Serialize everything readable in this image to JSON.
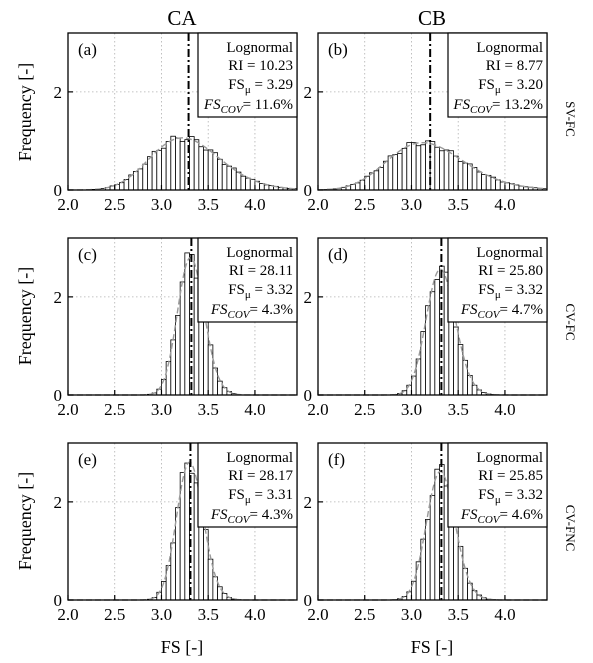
{
  "columns": [
    "CA",
    "CB"
  ],
  "rows": [
    "SV-FC",
    "CV-FC",
    "CV-FNC"
  ],
  "ylabel": "Frequency [-]",
  "xlabel": "FS [-]",
  "colors": {
    "bars": "#ffffff",
    "bar_edge": "#000000",
    "fit_curve": "#9a9a9a",
    "grid": "#b0b0b0"
  },
  "chart_data": [
    {
      "type": "bar",
      "panel": "(a)",
      "column": "CA",
      "row": "SV-FC",
      "dist": "Lognormal",
      "ri_label": "RI = 10.23",
      "mu_label": "FSμ = 3.29",
      "cov_label": "FSCOV= 11.6%",
      "RI": 10.23,
      "mean": 3.29,
      "cov": 11.6,
      "xlim": [
        2.0,
        4.45
      ],
      "ylim": [
        0,
        3.2
      ],
      "xticks": [
        2.0,
        2.5,
        3.0,
        3.5,
        4.0
      ],
      "yticks": [
        0,
        2
      ],
      "xlabel": "",
      "ylabel": "Frequency [-]"
    },
    {
      "type": "bar",
      "panel": "(b)",
      "column": "CB",
      "row": "SV-FC",
      "dist": "Lognormal",
      "ri_label": "RI = 8.77",
      "mu_label": "FSμ = 3.20",
      "cov_label": "FSCOV= 13.2%",
      "RI": 8.77,
      "mean": 3.2,
      "cov": 13.2,
      "xlim": [
        2.0,
        4.45
      ],
      "ylim": [
        0,
        3.2
      ],
      "xticks": [
        2.0,
        2.5,
        3.0,
        3.5,
        4.0
      ],
      "yticks": [
        0,
        2
      ],
      "xlabel": "",
      "ylabel": ""
    },
    {
      "type": "bar",
      "panel": "(c)",
      "column": "CA",
      "row": "CV-FC",
      "dist": "Lognormal",
      "ri_label": "RI = 28.11",
      "mu_label": "FSμ = 3.32",
      "cov_label": "FSCOV= 4.3%",
      "RI": 28.11,
      "mean": 3.32,
      "cov": 4.3,
      "xlim": [
        2.0,
        4.45
      ],
      "ylim": [
        0,
        3.2
      ],
      "xticks": [
        2.0,
        2.5,
        3.0,
        3.5,
        4.0
      ],
      "yticks": [
        0,
        2
      ],
      "xlabel": "",
      "ylabel": "Frequency [-]"
    },
    {
      "type": "bar",
      "panel": "(d)",
      "column": "CB",
      "row": "CV-FC",
      "dist": "Lognormal",
      "ri_label": "RI = 25.80",
      "mu_label": "FSμ = 3.32",
      "cov_label": "FSCOV= 4.7%",
      "RI": 25.8,
      "mean": 3.32,
      "cov": 4.7,
      "xlim": [
        2.0,
        4.45
      ],
      "ylim": [
        0,
        3.2
      ],
      "xticks": [
        2.0,
        2.5,
        3.0,
        3.5,
        4.0
      ],
      "yticks": [
        0,
        2
      ],
      "xlabel": "",
      "ylabel": ""
    },
    {
      "type": "bar",
      "panel": "(e)",
      "column": "CA",
      "row": "CV-FNC",
      "dist": "Lognormal",
      "ri_label": "RI = 28.17",
      "mu_label": "FSμ = 3.31",
      "cov_label": "FSCOV= 4.3%",
      "RI": 28.17,
      "mean": 3.31,
      "cov": 4.3,
      "xlim": [
        2.0,
        4.45
      ],
      "ylim": [
        0,
        3.2
      ],
      "xticks": [
        2.0,
        2.5,
        3.0,
        3.5,
        4.0
      ],
      "yticks": [
        0,
        2
      ],
      "xlabel": "FS [-]",
      "ylabel": "Frequency [-]"
    },
    {
      "type": "bar",
      "panel": "(f)",
      "column": "CB",
      "row": "CV-FNC",
      "dist": "Lognormal",
      "ri_label": "RI = 25.85",
      "mu_label": "FSμ = 3.32",
      "cov_label": "FSCOV= 4.6%",
      "RI": 25.85,
      "mean": 3.32,
      "cov": 4.6,
      "xlim": [
        2.0,
        4.45
      ],
      "ylim": [
        0,
        3.2
      ],
      "xticks": [
        2.0,
        2.5,
        3.0,
        3.5,
        4.0
      ],
      "yticks": [
        0,
        2
      ],
      "xlabel": "FS [-]",
      "ylabel": ""
    }
  ]
}
